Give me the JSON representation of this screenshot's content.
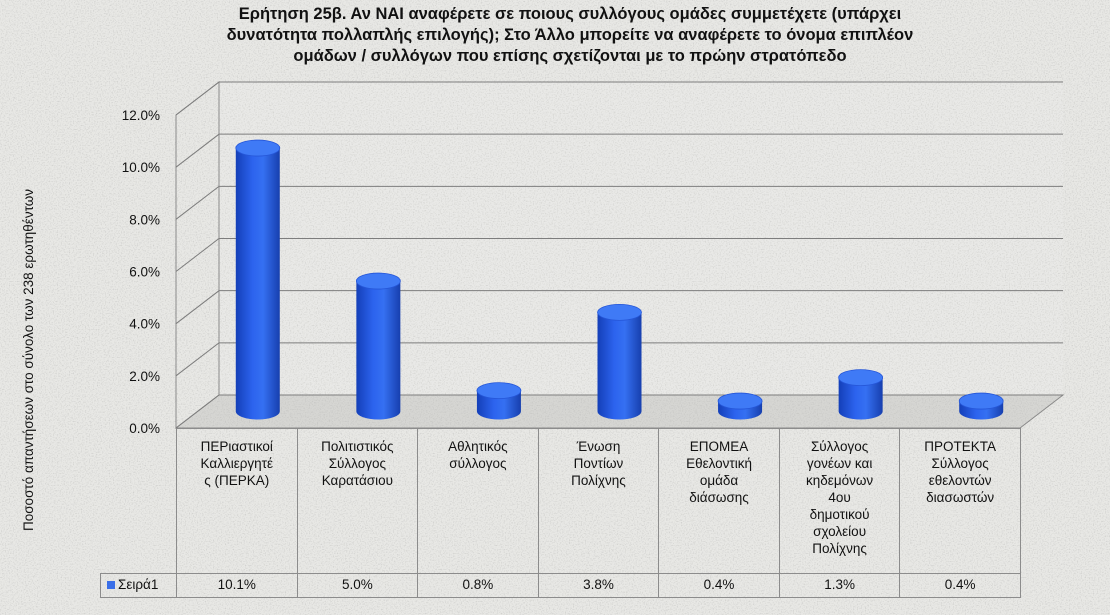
{
  "chart_data": {
    "type": "bar",
    "style": "3d-cylinder",
    "title_lines": [
      "Ερήτηση 25β. Αν ΝΑΙ αναφέρετε σε ποιους συλλόγους ομάδες συμμετέχετε (υπάρχει",
      "δυνατότητα πολλαπλής επιλογής); Στο Άλλο μπορείτε να αναφέρετε το όνομα επιπλέον",
      "ομάδων / συλλόγων που επίσης σχετίζονται με το πρώην στρατόπεδο"
    ],
    "ylabel": "Ποσοστό απαντήσεων στο σύνολο των 238 ερωτηθέντων",
    "ylim": [
      0,
      12
    ],
    "yticks": [
      0,
      2,
      4,
      6,
      8,
      10,
      12
    ],
    "ytick_labels": [
      "0.0%",
      "2.0%",
      "4.0%",
      "6.0%",
      "8.0%",
      "10.0%",
      "12.0%"
    ],
    "categories": [
      [
        "ΠΕΡιαστικοί",
        "Καλλιεργητέ",
        "ς (ΠΕΡΚΑ)"
      ],
      [
        "Πολιτιστικός",
        "Σύλλογος",
        "Καρατάσιου"
      ],
      [
        "Αθλητικός",
        "σύλλογος"
      ],
      [
        "Ένωση",
        "Ποντίων",
        "Πολίχνης"
      ],
      [
        "ΕΠΟΜΕΑ",
        "Εθελοντική",
        "ομάδα",
        "διάσωσης"
      ],
      [
        "Σύλλογος",
        "γονέων και",
        "κηδεμόνων",
        "4ου",
        "δημοτικού",
        "σχολείου",
        "Πολίχνης"
      ],
      [
        "ΠΡΟΤΕΚΤΑ",
        "Σύλλογος",
        "εθελοντών",
        "διασωστών"
      ]
    ],
    "series": [
      {
        "name": "Σειρά1",
        "values": [
          10.1,
          5.0,
          0.8,
          3.8,
          0.4,
          1.3,
          0.4
        ],
        "value_labels": [
          "10.1%",
          "5.0%",
          "0.8%",
          "3.8%",
          "0.4%",
          "1.3%",
          "0.4%"
        ],
        "color": "#2f62e0"
      }
    ],
    "grid": true,
    "legend": "data-table-below"
  }
}
